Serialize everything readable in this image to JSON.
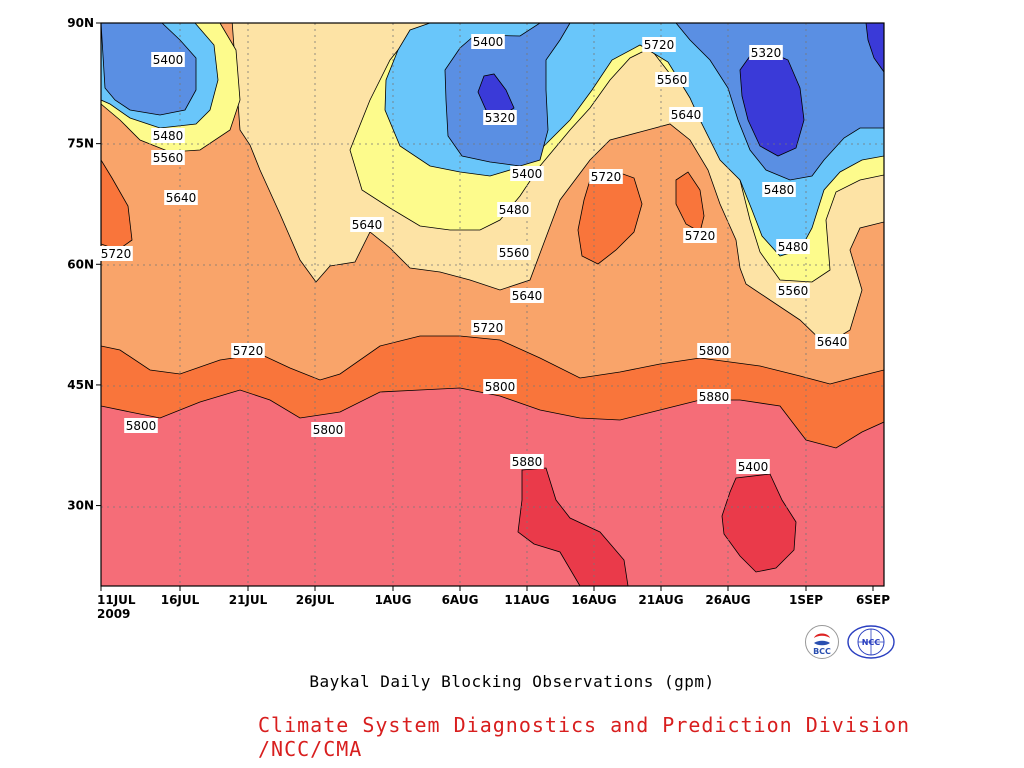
{
  "chart_data": {
    "type": "contour",
    "title": "Baykal Daily Blocking Observations (gpm)",
    "credit": "Climate System Diagnostics and Prediction Division /NCC/CMA",
    "x_tick_labels": [
      "11JUL",
      "16JUL",
      "21JUL",
      "26JUL",
      "1AUG",
      "6AUG",
      "11AUG",
      "16AUG",
      "21AUG",
      "26AUG",
      "1SEP",
      "6SEP"
    ],
    "x_year_label": "2009",
    "y_tick_labels": [
      "30N",
      "45N",
      "60N",
      "75N",
      "90N"
    ],
    "y_values": [
      30,
      45,
      60,
      75,
      90
    ],
    "ylim": [
      20,
      90
    ],
    "x_range_days": [
      "2009-07-11",
      "2009-09-06"
    ],
    "grid": true,
    "levels": [
      5320,
      5400,
      5480,
      5560,
      5640,
      5720,
      5800,
      5880
    ],
    "colors": {
      "lt5320": "#3a3ad8",
      "5320_5400": "#5a8fe3",
      "5400_5480": "#69c6fa",
      "5480_5560": "#fdfb8c",
      "5560_5640": "#fde3a5",
      "5640_5720": "#f9a46a",
      "5720_5800": "#f9753b",
      "5800_5880": "#f56d78",
      "gt5880": "#ea3a4a"
    },
    "contour_labels": [
      {
        "text": "5400"
      },
      {
        "text": "5480"
      },
      {
        "text": "5560"
      },
      {
        "text": "5640"
      },
      {
        "text": "5720"
      },
      {
        "text": "5720"
      },
      {
        "text": "5800"
      },
      {
        "text": "5800"
      },
      {
        "text": "5640"
      },
      {
        "text": "5400"
      },
      {
        "text": "5320"
      },
      {
        "text": "5400"
      },
      {
        "text": "5480"
      },
      {
        "text": "5560"
      },
      {
        "text": "5640"
      },
      {
        "text": "5720"
      },
      {
        "text": "5800"
      },
      {
        "text": "5880"
      },
      {
        "text": "5720"
      },
      {
        "text": "5480"
      },
      {
        "text": "5560"
      },
      {
        "text": "5640"
      },
      {
        "text": "5320"
      },
      {
        "text": "5720"
      },
      {
        "text": "5720"
      },
      {
        "text": "5800"
      },
      {
        "text": "5880"
      },
      {
        "text": "5400"
      },
      {
        "text": "5480"
      },
      {
        "text": "5560"
      },
      {
        "text": "5640"
      }
    ]
  }
}
